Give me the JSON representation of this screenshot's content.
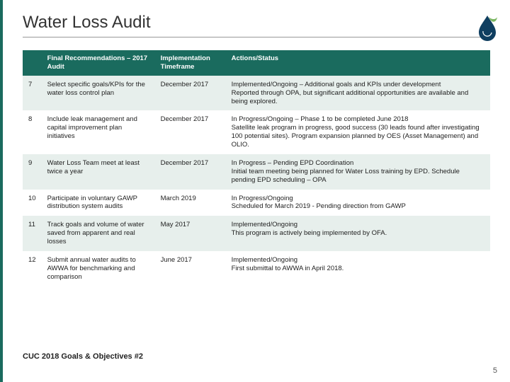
{
  "title": "Water Loss Audit",
  "footer": "CUC 2018 Goals & Objectives #2",
  "page_number": "5",
  "colors": {
    "accent": "#1a6b5e",
    "row_alt": "#e7efec",
    "logo_dark": "#0f3e60",
    "logo_leaf": "#7bb661"
  },
  "table": {
    "columns": [
      "",
      "Final Recommendations – 2017 Audit",
      "Implementation Timeframe",
      "Actions/Status"
    ],
    "rows": [
      {
        "n": "7",
        "rec": "Select specific goals/KPIs for the water loss control plan",
        "time": "December 2017",
        "status": "Implemented/Ongoing – Additional goals and KPIs under development\nReported through OPA, but significant additional opportunities are available and being explored."
      },
      {
        "n": "8",
        "rec": "Include leak management and capital improvement plan initiatives",
        "time": "December 2017",
        "status": "In Progress/Ongoing – Phase 1 to be completed June 2018\nSatellite leak program in progress, good success (30 leads found after investigating 100 potential sites). Program expansion planned by OES (Asset Management) and OLIO."
      },
      {
        "n": "9",
        "rec": "Water Loss Team meet at least twice a year",
        "time": "December 2017",
        "status": "In Progress – Pending EPD Coordination\nInitial team meeting being planned for Water Loss training by EPD. Schedule pending EPD scheduling – OPA"
      },
      {
        "n": "10",
        "rec": "Participate in voluntary GAWP distribution system audits",
        "time": "March 2019",
        "status": "In Progress/Ongoing\nScheduled for March 2019 - Pending direction from GAWP"
      },
      {
        "n": "11",
        "rec": "Track goals and volume of water saved from apparent and real losses",
        "time": "May 2017",
        "status": "Implemented/Ongoing\nThis program is actively being implemented by OFA."
      },
      {
        "n": "12",
        "rec": "Submit annual water audits to AWWA for benchmarking and comparison",
        "time": "June 2017",
        "status": "Implemented/Ongoing\nFirst submittal to AWWA in April 2018."
      }
    ]
  }
}
